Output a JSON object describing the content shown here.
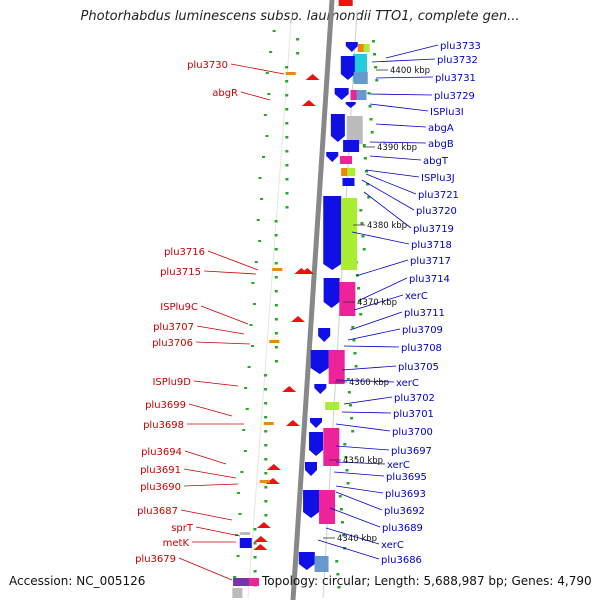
{
  "title": "Photorhabdus luminescens subsp. laumondii TTO1, complete gen...",
  "footer": {
    "accession": "Accession: NC_005126",
    "info": "Topology: circular; Length: 5,688,987 bp; Genes: 4,790"
  },
  "kbp_labels": [
    "4400 kbp",
    "4390 kbp",
    "4380 kbp",
    "4370 kbp",
    "4360 kbp",
    "4350 kbp",
    "4340 kbp"
  ],
  "left_labels": [
    "plu3730",
    "abgR",
    "plu3716",
    "plu3715",
    "ISPlu9C",
    "plu3707",
    "plu3706",
    "ISPlu9D",
    "plu3699",
    "plu3698",
    "plu3694",
    "plu3691",
    "plu3690",
    "plu3687",
    "sprT",
    "metK",
    "plu3679"
  ],
  "right_labels": [
    "plu3733",
    "plu3732",
    "plu3731",
    "plu3729",
    "ISPlu3I",
    "abgA",
    "abgB",
    "abgT",
    "ISPlu3J",
    "plu3721",
    "plu3720",
    "plu3719",
    "plu3718",
    "plu3717",
    "plu3714",
    "xerC",
    "plu3711",
    "plu3709",
    "plu3708",
    "plu3705",
    "xerC",
    "plu3702",
    "plu3701",
    "plu3700",
    "plu3697",
    "xerC",
    "plu3695",
    "plu3693",
    "plu3692",
    "plu3689",
    "xerC",
    "plu3686"
  ],
  "colors": {
    "forward_cds": "#1010e6",
    "reverse_cds": "#ee1111",
    "pink": "#ee2299",
    "lime": "#aaee33",
    "gray": "#bbbbbb",
    "steel": "#6699cc",
    "cyan": "#22ccdd",
    "orange": "#ee8800",
    "left_label": "#cc0000",
    "right_label": "#0000cc",
    "backbone": "#888888"
  }
}
